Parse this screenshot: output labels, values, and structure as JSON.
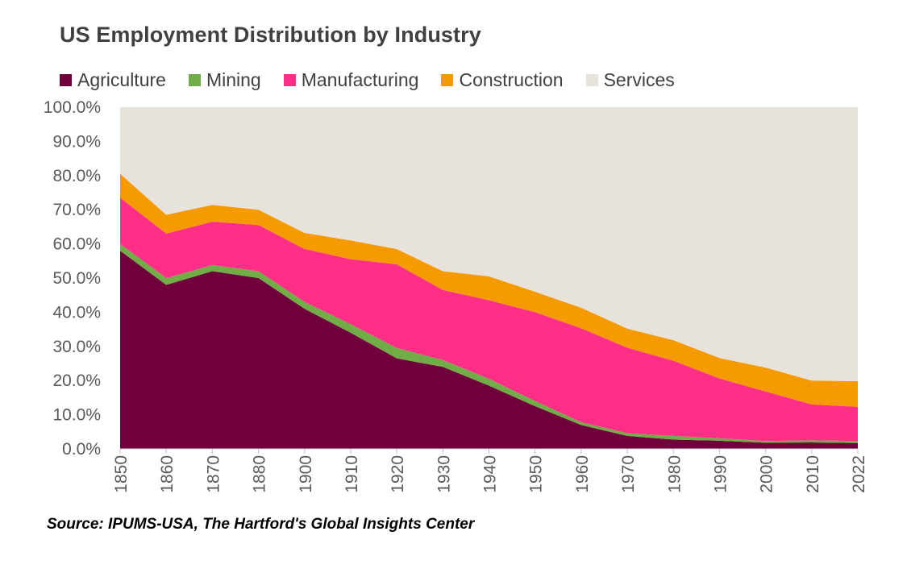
{
  "chart_data": {
    "type": "area",
    "stacked": true,
    "title": "US Employment Distribution by Industry",
    "x": [
      "1850",
      "1860",
      "1870",
      "1880",
      "1900",
      "1910",
      "1920",
      "1930",
      "1940",
      "1950",
      "1960",
      "1970",
      "1980",
      "1990",
      "2000",
      "2010",
      "2022"
    ],
    "series": [
      {
        "name": "Agriculture",
        "color": "#70003C",
        "values": [
          58.0,
          48.0,
          52.0,
          50.0,
          41.0,
          34.0,
          26.5,
          24.0,
          18.5,
          12.5,
          7.0,
          3.8,
          2.7,
          2.4,
          1.8,
          1.9,
          1.7
        ]
      },
      {
        "name": "Mining",
        "color": "#70AD47",
        "values": [
          2.0,
          2.0,
          1.8,
          2.0,
          2.0,
          2.5,
          3.0,
          2.0,
          2.0,
          1.5,
          0.8,
          0.8,
          1.1,
          0.7,
          0.5,
          0.6,
          0.6
        ]
      },
      {
        "name": "Manufacturing",
        "color": "#FF2E86",
        "values": [
          13.5,
          13.0,
          12.7,
          13.5,
          15.5,
          19.0,
          24.5,
          20.5,
          23.0,
          26.0,
          27.5,
          25.0,
          22.0,
          17.5,
          14.5,
          10.5,
          10.0
        ]
      },
      {
        "name": "Construction",
        "color": "#F59A00",
        "values": [
          7.0,
          5.5,
          4.9,
          4.5,
          4.7,
          5.5,
          4.5,
          5.5,
          7.0,
          6.0,
          6.0,
          5.6,
          6.0,
          6.0,
          7.0,
          7.0,
          7.5
        ]
      },
      {
        "name": "Services",
        "color": "#E7E2DC",
        "values": [
          19.5,
          31.5,
          28.6,
          30.0,
          36.8,
          39.0,
          41.5,
          48.0,
          49.5,
          54.0,
          58.7,
          64.8,
          68.2,
          73.4,
          76.2,
          80.0,
          80.2
        ]
      }
    ],
    "y_ticks": [
      "0.0%",
      "10.0%",
      "20.0%",
      "30.0%",
      "40.0%",
      "50.0%",
      "60.0%",
      "70.0%",
      "80.0%",
      "90.0%",
      "100.0%"
    ],
    "ylim": [
      0,
      100
    ],
    "xlabel": "",
    "ylabel": "",
    "legend_position": "top-left",
    "grid": false,
    "source": "Source: IPUMS-USA, The Hartford's Global Insights Center"
  }
}
